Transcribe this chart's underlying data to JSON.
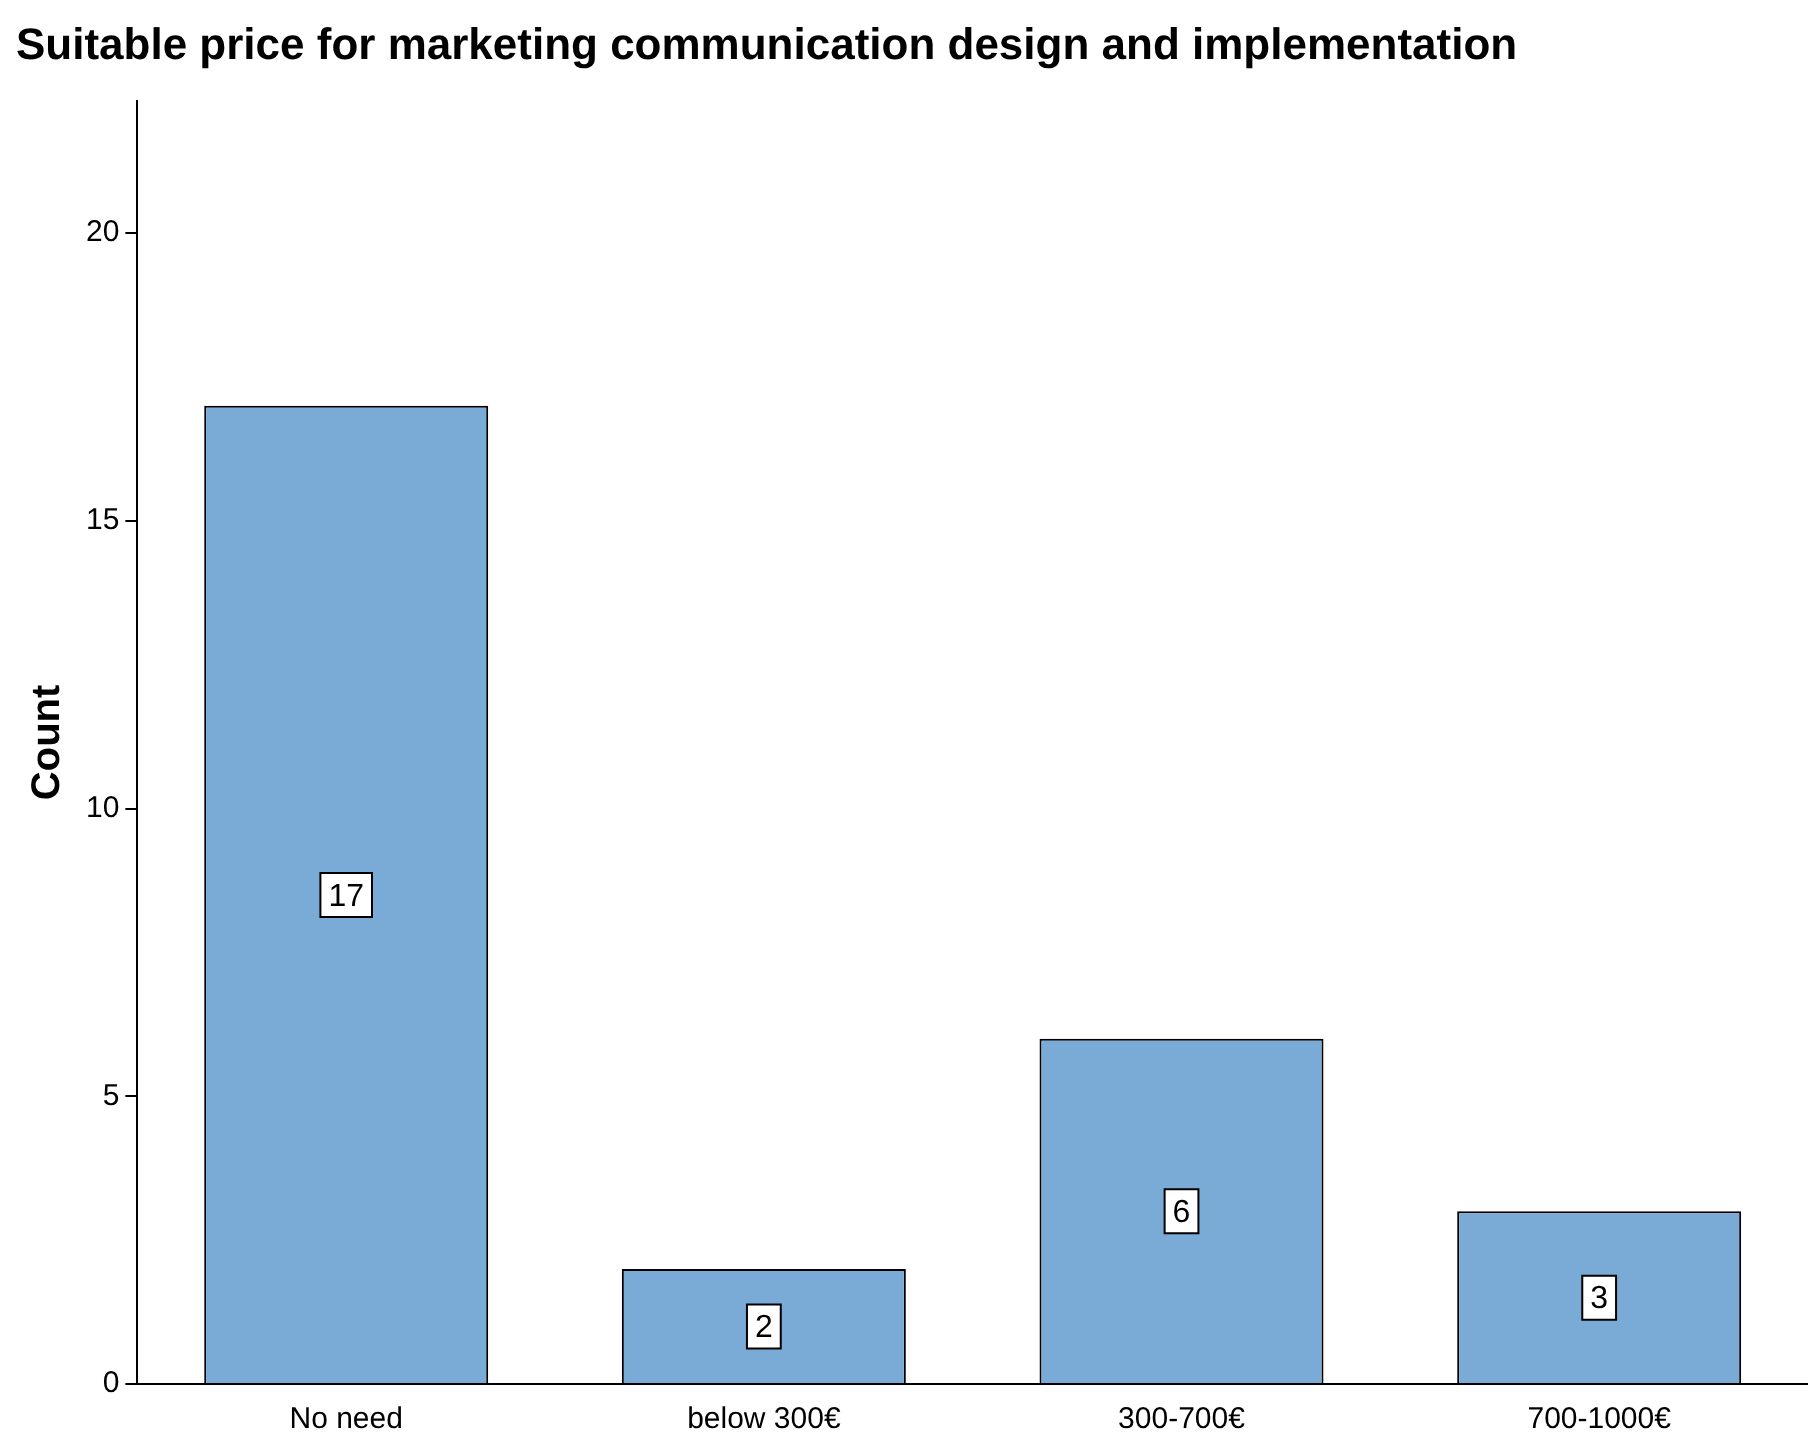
{
  "chart_data": {
    "type": "bar",
    "title": "Suitable price for marketing communication design and implementation",
    "ylabel": "Count",
    "categories": [
      "No need",
      "below 300€",
      "300-700€",
      "700-1000€"
    ],
    "values": [
      17,
      2,
      6,
      3
    ],
    "color": "#7aaad6",
    "ylim": [
      0,
      22.3
    ],
    "yticks": [
      0,
      5,
      10,
      15,
      20
    ],
    "grid": false,
    "legend": false,
    "data_labels": true
  }
}
